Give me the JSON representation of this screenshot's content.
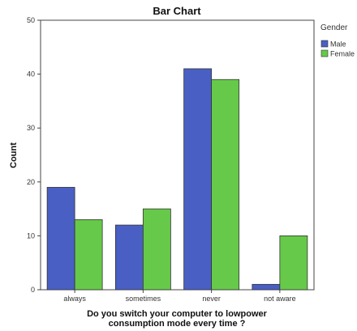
{
  "chart_data": {
    "type": "bar",
    "title": "Bar Chart",
    "xlabel_lines": [
      "Do you switch your computer to lowpower",
      "consumption mode every time ?"
    ],
    "ylabel": "Count",
    "categories": [
      "always",
      "sometimes",
      "never",
      "not aware"
    ],
    "series": [
      {
        "name": "Male",
        "values": [
          19,
          12,
          41,
          1
        ],
        "color": "#4a5fc4"
      },
      {
        "name": "Female",
        "values": [
          13,
          15,
          39,
          10
        ],
        "color": "#66c94a"
      }
    ],
    "ylim": [
      0,
      50
    ],
    "yticks": [
      0,
      10,
      20,
      30,
      40,
      50
    ],
    "grid": false,
    "legend_title": "Gender",
    "legend_position": "right-top"
  }
}
